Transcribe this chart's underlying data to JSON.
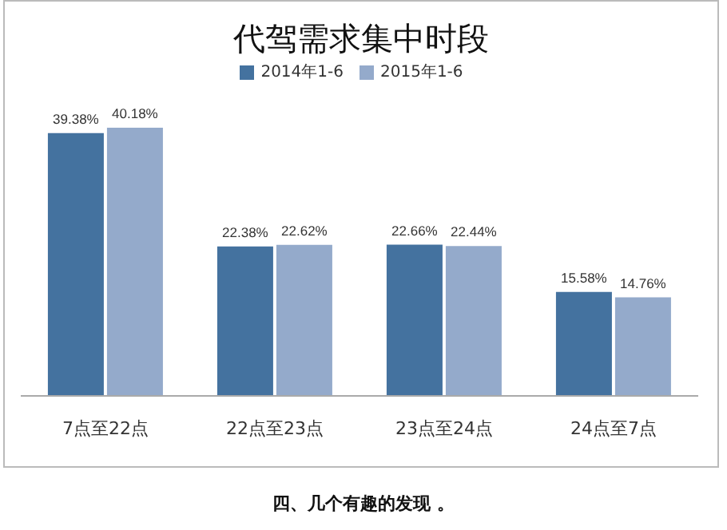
{
  "chart_data": {
    "type": "bar",
    "title": "代驾需求集中时段",
    "categories": [
      "7点至22点",
      "22点至23点",
      "23点至24点",
      "24点至7点"
    ],
    "series": [
      {
        "name": "2014年1-6",
        "color": "#44729f",
        "values": [
          39.38,
          22.38,
          22.66,
          15.58
        ],
        "value_labels": [
          "39.38%",
          "22.38%",
          "22.66%",
          "15.58%"
        ]
      },
      {
        "name": "2015年1-6",
        "color": "#94aacb",
        "values": [
          40.18,
          22.62,
          22.44,
          14.76
        ],
        "value_labels": [
          "40.18%",
          "22.62%",
          "22.44%",
          "14.76%"
        ]
      }
    ],
    "legend": "top",
    "annotations": [
      "四、几个有趣的发现 。"
    ]
  }
}
